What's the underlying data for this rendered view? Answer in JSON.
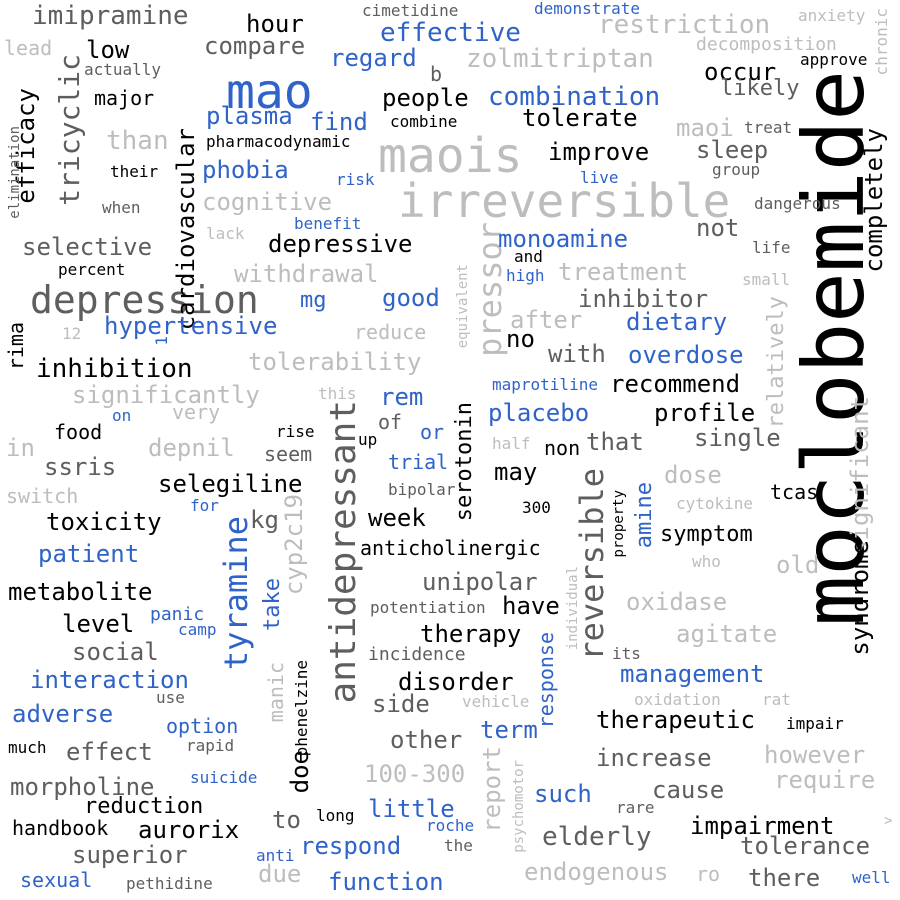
{
  "words": [
    {
      "id": "moclobemide",
      "text": "moclobemide",
      "color": "black"
    },
    {
      "id": "irreversible",
      "text": "irreversible",
      "color": "light-gray"
    },
    {
      "id": "maois",
      "text": "maois",
      "color": "light-gray"
    },
    {
      "id": "mao",
      "text": "mao",
      "color": "blue"
    },
    {
      "id": "depression",
      "text": "depression",
      "color": "dark-gray"
    },
    {
      "id": "antidepressant",
      "text": "antidepressant",
      "color": "dark-gray"
    },
    {
      "id": "reversible",
      "text": "reversible",
      "color": "dark-gray"
    },
    {
      "id": "tyramine",
      "text": "tyramine",
      "color": "blue"
    },
    {
      "id": "imipramine",
      "text": "imipramine",
      "color": "dark-gray"
    },
    {
      "id": "restriction",
      "text": "restriction",
      "color": "light-gray"
    },
    {
      "id": "zolmitriptan",
      "text": "zolmitriptan",
      "color": "light-gray"
    },
    {
      "id": "effective",
      "text": "effective",
      "color": "blue"
    },
    {
      "id": "combination",
      "text": "combination",
      "color": "blue"
    },
    {
      "id": "inhibition",
      "text": "inhibition",
      "color": "black"
    },
    {
      "id": "depressive",
      "text": "depressive",
      "color": "black"
    },
    {
      "id": "tricyclic",
      "text": "tricyclic",
      "color": "dark-gray"
    },
    {
      "id": "efficacy",
      "text": "efficacy",
      "color": "black"
    },
    {
      "id": "cardiovascular",
      "text": "cardiovascular",
      "color": "black"
    },
    {
      "id": "pressor",
      "text": "pressor",
      "color": "light-gray"
    },
    {
      "id": "hour",
      "text": "hour",
      "color": "black"
    },
    {
      "id": "compare",
      "text": "compare",
      "color": "dark-gray"
    },
    {
      "id": "regard",
      "text": "regard",
      "color": "blue"
    },
    {
      "id": "low",
      "text": "low",
      "color": "black"
    },
    {
      "id": "people",
      "text": "people",
      "color": "black"
    },
    {
      "id": "occur",
      "text": "occur",
      "color": "black"
    },
    {
      "id": "plasma",
      "text": "plasma",
      "color": "blue"
    },
    {
      "id": "find",
      "text": "find",
      "color": "blue"
    },
    {
      "id": "tolerate",
      "text": "tolerate",
      "color": "black"
    },
    {
      "id": "maoi",
      "text": "maoi",
      "color": "light-gray"
    },
    {
      "id": "improve",
      "text": "improve",
      "color": "black"
    },
    {
      "id": "sleep",
      "text": "sleep",
      "color": "dark-gray"
    },
    {
      "id": "phobia",
      "text": "phobia",
      "color": "blue"
    },
    {
      "id": "cognitive",
      "text": "cognitive",
      "color": "light-gray"
    },
    {
      "id": "selective",
      "text": "selective",
      "color": "dark-gray"
    },
    {
      "id": "withdrawal",
      "text": "withdrawal",
      "color": "light-gray"
    },
    {
      "id": "mg",
      "text": "mg",
      "color": "blue"
    },
    {
      "id": "good",
      "text": "good",
      "color": "blue"
    },
    {
      "id": "monoamine",
      "text": "monoamine",
      "color": "blue"
    },
    {
      "id": "treatment",
      "text": "treatment",
      "color": "light-gray"
    },
    {
      "id": "inhibitor",
      "text": "inhibitor",
      "color": "dark-gray"
    },
    {
      "id": "hypertensive",
      "text": "hypertensive",
      "color": "blue"
    },
    {
      "id": "dietary",
      "text": "dietary",
      "color": "blue"
    },
    {
      "id": "tolerability",
      "text": "tolerability",
      "color": "light-gray"
    },
    {
      "id": "after",
      "text": "after",
      "color": "light-gray"
    },
    {
      "id": "overdose",
      "text": "overdose",
      "color": "blue"
    },
    {
      "id": "with",
      "text": "with",
      "color": "dark-gray"
    },
    {
      "id": "recommend",
      "text": "recommend",
      "color": "black"
    },
    {
      "id": "significantly",
      "text": "significantly",
      "color": "light-gray"
    },
    {
      "id": "placebo",
      "text": "placebo",
      "color": "blue"
    },
    {
      "id": "profile",
      "text": "profile",
      "color": "black"
    },
    {
      "id": "single",
      "text": "single",
      "color": "dark-gray"
    },
    {
      "id": "that",
      "text": "that",
      "color": "dark-gray"
    },
    {
      "id": "depnil",
      "text": "depnil",
      "color": "light-gray"
    },
    {
      "id": "ssris",
      "text": "ssris",
      "color": "dark-gray"
    },
    {
      "id": "selegiline",
      "text": "selegiline",
      "color": "black"
    },
    {
      "id": "toxicity",
      "text": "toxicity",
      "color": "black"
    },
    {
      "id": "patient",
      "text": "patient",
      "color": "blue"
    },
    {
      "id": "metabolite",
      "text": "metabolite",
      "color": "black"
    },
    {
      "id": "level",
      "text": "level",
      "color": "black"
    },
    {
      "id": "social",
      "text": "social",
      "color": "dark-gray"
    },
    {
      "id": "interaction",
      "text": "interaction",
      "color": "blue"
    },
    {
      "id": "adverse",
      "text": "adverse",
      "color": "blue"
    },
    {
      "id": "effect",
      "text": "effect",
      "color": "dark-gray"
    },
    {
      "id": "morpholine",
      "text": "morpholine",
      "color": "dark-gray"
    },
    {
      "id": "reduction",
      "text": "reduction",
      "color": "black"
    },
    {
      "id": "handbook",
      "text": "handbook",
      "color": "black"
    },
    {
      "id": "aurorix",
      "text": "aurorix",
      "color": "black"
    },
    {
      "id": "superior",
      "text": "superior",
      "color": "dark-gray"
    },
    {
      "id": "sexual",
      "text": "sexual",
      "color": "blue"
    },
    {
      "id": "pethidine",
      "text": "pethidine",
      "color": "dark-gray"
    },
    {
      "id": "due",
      "text": "due",
      "color": "light-gray"
    },
    {
      "id": "function",
      "text": "function",
      "color": "blue"
    },
    {
      "id": "respond",
      "text": "respond",
      "color": "blue"
    },
    {
      "id": "little",
      "text": "little",
      "color": "blue"
    },
    {
      "id": "such",
      "text": "such",
      "color": "blue"
    },
    {
      "id": "endogenous",
      "text": "endogenous",
      "color": "light-gray"
    },
    {
      "id": "elderly",
      "text": "elderly",
      "color": "dark-gray"
    },
    {
      "id": "impairment",
      "text": "impairment",
      "color": "black"
    },
    {
      "id": "tolerance",
      "text": "tolerance",
      "color": "dark-gray"
    },
    {
      "id": "there",
      "text": "there",
      "color": "dark-gray"
    },
    {
      "id": "cause",
      "text": "cause",
      "color": "dark-gray"
    },
    {
      "id": "increase",
      "text": "increase",
      "color": "dark-gray"
    },
    {
      "id": "however",
      "text": "however",
      "color": "light-gray"
    },
    {
      "id": "require",
      "text": "require",
      "color": "light-gray"
    },
    {
      "id": "therapeutic",
      "text": "therapeutic",
      "color": "black"
    },
    {
      "id": "management",
      "text": "management",
      "color": "blue"
    },
    {
      "id": "agitate",
      "text": "agitate",
      "color": "light-gray"
    },
    {
      "id": "oxidase",
      "text": "oxidase",
      "color": "light-gray"
    },
    {
      "id": "old",
      "text": "old",
      "color": "light-gray"
    },
    {
      "id": "symptom",
      "text": "symptom",
      "color": "black"
    },
    {
      "id": "dose",
      "text": "dose",
      "color": "light-gray"
    },
    {
      "id": "tcas",
      "text": "tcas",
      "color": "black"
    },
    {
      "id": "unipolar",
      "text": "unipolar",
      "color": "dark-gray"
    },
    {
      "id": "have",
      "text": "have",
      "color": "black"
    },
    {
      "id": "therapy",
      "text": "therapy",
      "color": "black"
    },
    {
      "id": "disorder",
      "text": "disorder",
      "color": "black"
    },
    {
      "id": "anticholinergic",
      "text": "anticholinergic",
      "color": "black"
    },
    {
      "id": "week",
      "text": "week",
      "color": "black"
    },
    {
      "id": "may",
      "text": "may",
      "color": "black"
    },
    {
      "id": "side",
      "text": "side",
      "color": "dark-gray"
    },
    {
      "id": "other",
      "text": "other",
      "color": "dark-gray"
    },
    {
      "id": "term",
      "text": "term",
      "color": "blue"
    },
    {
      "id": "100-300",
      "text": "100-300",
      "color": "light-gray"
    },
    {
      "id": "kg",
      "text": "kg",
      "color": "dark-gray"
    },
    {
      "id": "no",
      "text": "no",
      "color": "black"
    },
    {
      "id": "rem",
      "text": "rem",
      "color": "blue"
    },
    {
      "id": "trial",
      "text": "trial",
      "color": "blue"
    },
    {
      "id": "serotonin",
      "text": "serotonin",
      "color": "black"
    },
    {
      "id": "cyp2c19",
      "text": "cyp2c19",
      "color": "light-gray"
    },
    {
      "id": "take",
      "text": "take",
      "color": "blue"
    },
    {
      "id": "manic",
      "text": "manic",
      "color": "light-gray"
    },
    {
      "id": "doe",
      "text": "doe",
      "color": "black"
    },
    {
      "id": "to",
      "text": "to",
      "color": "dark-gray"
    },
    {
      "id": "report",
      "text": "report",
      "color": "light-gray"
    },
    {
      "id": "response",
      "text": "response",
      "color": "blue"
    },
    {
      "id": "amine",
      "text": "amine",
      "color": "blue"
    },
    {
      "id": "not",
      "text": "not",
      "color": "dark-gray"
    },
    {
      "id": "likely",
      "text": "likely",
      "color": "dark-gray"
    },
    {
      "id": "completely",
      "text": "completely",
      "color": "black"
    },
    {
      "id": "relatively",
      "text": "relatively",
      "color": "light-gray"
    },
    {
      "id": "significant",
      "text": "significant",
      "color": "light-gray"
    },
    {
      "id": "syndrome",
      "text": "syndrome",
      "color": "black"
    },
    {
      "id": "than",
      "text": "than",
      "color": "light-gray"
    },
    {
      "id": "major",
      "text": "major",
      "color": "black"
    },
    {
      "id": "actually",
      "text": "actually",
      "color": "dark-gray"
    },
    {
      "id": "lead",
      "text": "lead",
      "color": "light-gray"
    },
    {
      "id": "b",
      "text": "b",
      "color": "dark-gray"
    },
    {
      "id": "cimetidine",
      "text": "cimetidine",
      "color": "dark-gray"
    },
    {
      "id": "demonstrate",
      "text": "demonstrate",
      "color": "blue"
    },
    {
      "id": "anxiety",
      "text": "anxiety",
      "color": "light-gray"
    },
    {
      "id": "chronic",
      "text": "chronic",
      "color": "light-gray"
    },
    {
      "id": "decomposition",
      "text": "decomposition",
      "color": "light-gray"
    },
    {
      "id": "approve",
      "text": "approve",
      "color": "black"
    },
    {
      "id": "treat",
      "text": "treat",
      "color": "dark-gray"
    },
    {
      "id": "group",
      "text": "group",
      "color": "dark-gray"
    },
    {
      "id": "dangerous",
      "text": "dangerous",
      "color": "dark-gray"
    },
    {
      "id": "life",
      "text": "life",
      "color": "dark-gray"
    },
    {
      "id": "small",
      "text": "small",
      "color": "light-gray"
    },
    {
      "id": "pharmacodynamic",
      "text": "pharmacodynamic",
      "color": "black"
    },
    {
      "id": "combine",
      "text": "combine",
      "color": "black"
    },
    {
      "id": "their",
      "text": "their",
      "color": "black"
    },
    {
      "id": "risk",
      "text": "risk",
      "color": "blue"
    },
    {
      "id": "live",
      "text": "live",
      "color": "blue"
    },
    {
      "id": "when",
      "text": "when",
      "color": "dark-gray"
    },
    {
      "id": "elimination",
      "text": "elimination",
      "color": "dark-gray"
    },
    {
      "id": "benefit",
      "text": "benefit",
      "color": "blue"
    },
    {
      "id": "lack",
      "text": "lack",
      "color": "light-gray"
    },
    {
      "id": "percent",
      "text": "percent",
      "color": "black"
    },
    {
      "id": "and",
      "text": "and",
      "color": "black"
    },
    {
      "id": "high",
      "text": "high",
      "color": "blue"
    },
    {
      "id": "rima",
      "text": "rima",
      "color": "black"
    },
    {
      "id": "12",
      "text": "12",
      "color": "light-gray"
    },
    {
      "id": "1",
      "text": "1",
      "color": "blue"
    },
    {
      "id": "reduce",
      "text": "reduce",
      "color": "light-gray"
    },
    {
      "id": "equivalent",
      "text": "equivalent",
      "color": "light-gray"
    },
    {
      "id": "maprotiline",
      "text": "maprotiline",
      "color": "blue"
    },
    {
      "id": "this",
      "text": "this",
      "color": "light-gray"
    },
    {
      "id": "very",
      "text": "very",
      "color": "light-gray"
    },
    {
      "id": "on",
      "text": "on",
      "color": "blue"
    },
    {
      "id": "food",
      "text": "food",
      "color": "black"
    },
    {
      "id": "in",
      "text": "in",
      "color": "light-gray"
    },
    {
      "id": "rise",
      "text": "rise",
      "color": "black"
    },
    {
      "id": "seem",
      "text": "seem",
      "color": "dark-gray"
    },
    {
      "id": "up",
      "text": "up",
      "color": "black"
    },
    {
      "id": "of",
      "text": "of",
      "color": "dark-gray"
    },
    {
      "id": "or",
      "text": "or",
      "color": "blue"
    },
    {
      "id": "half",
      "text": "half",
      "color": "light-gray"
    },
    {
      "id": "non",
      "text": "non",
      "color": "black"
    },
    {
      "id": "switch",
      "text": "switch",
      "color": "light-gray"
    },
    {
      "id": "for",
      "text": "for",
      "color": "blue"
    },
    {
      "id": "bipolar",
      "text": "bipolar",
      "color": "dark-gray"
    },
    {
      "id": "300",
      "text": "300",
      "color": "black"
    },
    {
      "id": "property",
      "text": "property",
      "color": "black"
    },
    {
      "id": "cytokine",
      "text": "cytokine",
      "color": "light-gray"
    },
    {
      "id": "who",
      "text": "who",
      "color": "light-gray"
    },
    {
      "id": "panic",
      "text": "panic",
      "color": "blue"
    },
    {
      "id": "camp",
      "text": "camp",
      "color": "blue"
    },
    {
      "id": "potentiation",
      "text": "potentiation",
      "color": "dark-gray"
    },
    {
      "id": "individual",
      "text": "individual",
      "color": "light-gray"
    },
    {
      "id": "its",
      "text": "its",
      "color": "dark-gray"
    },
    {
      "id": "incidence",
      "text": "incidence",
      "color": "dark-gray"
    },
    {
      "id": "phenelzine",
      "text": "phenelzine",
      "color": "black"
    },
    {
      "id": "option",
      "text": "option",
      "color": "blue"
    },
    {
      "id": "use",
      "text": "use",
      "color": "dark-gray"
    },
    {
      "id": "vehicle",
      "text": "vehicle",
      "color": "light-gray"
    },
    {
      "id": "oxidation",
      "text": "oxidation",
      "color": "light-gray"
    },
    {
      "id": "rat",
      "text": "rat",
      "color": "light-gray"
    },
    {
      "id": "impair",
      "text": "impair",
      "color": "black"
    },
    {
      "id": "much",
      "text": "much",
      "color": "black"
    },
    {
      "id": "rapid",
      "text": "rapid",
      "color": "dark-gray"
    },
    {
      "id": "suicide",
      "text": "suicide",
      "color": "blue"
    },
    {
      "id": "long",
      "text": "long",
      "color": "black"
    },
    {
      "id": "psychomotor",
      "text": "psychomotor",
      "color": "light-gray"
    },
    {
      "id": "roche",
      "text": "roche",
      "color": "blue"
    },
    {
      "id": "the",
      "text": "the",
      "color": "dark-gray"
    },
    {
      "id": "anti",
      "text": "anti",
      "color": "blue"
    },
    {
      "id": "rare",
      "text": "rare",
      "color": "dark-gray"
    },
    {
      "id": "ro",
      "text": "ro",
      "color": "light-gray"
    },
    {
      "id": "well",
      "text": "well",
      "color": "blue"
    },
    {
      "id": "gt",
      "text": ">",
      "color": "light-gray"
    }
  ]
}
